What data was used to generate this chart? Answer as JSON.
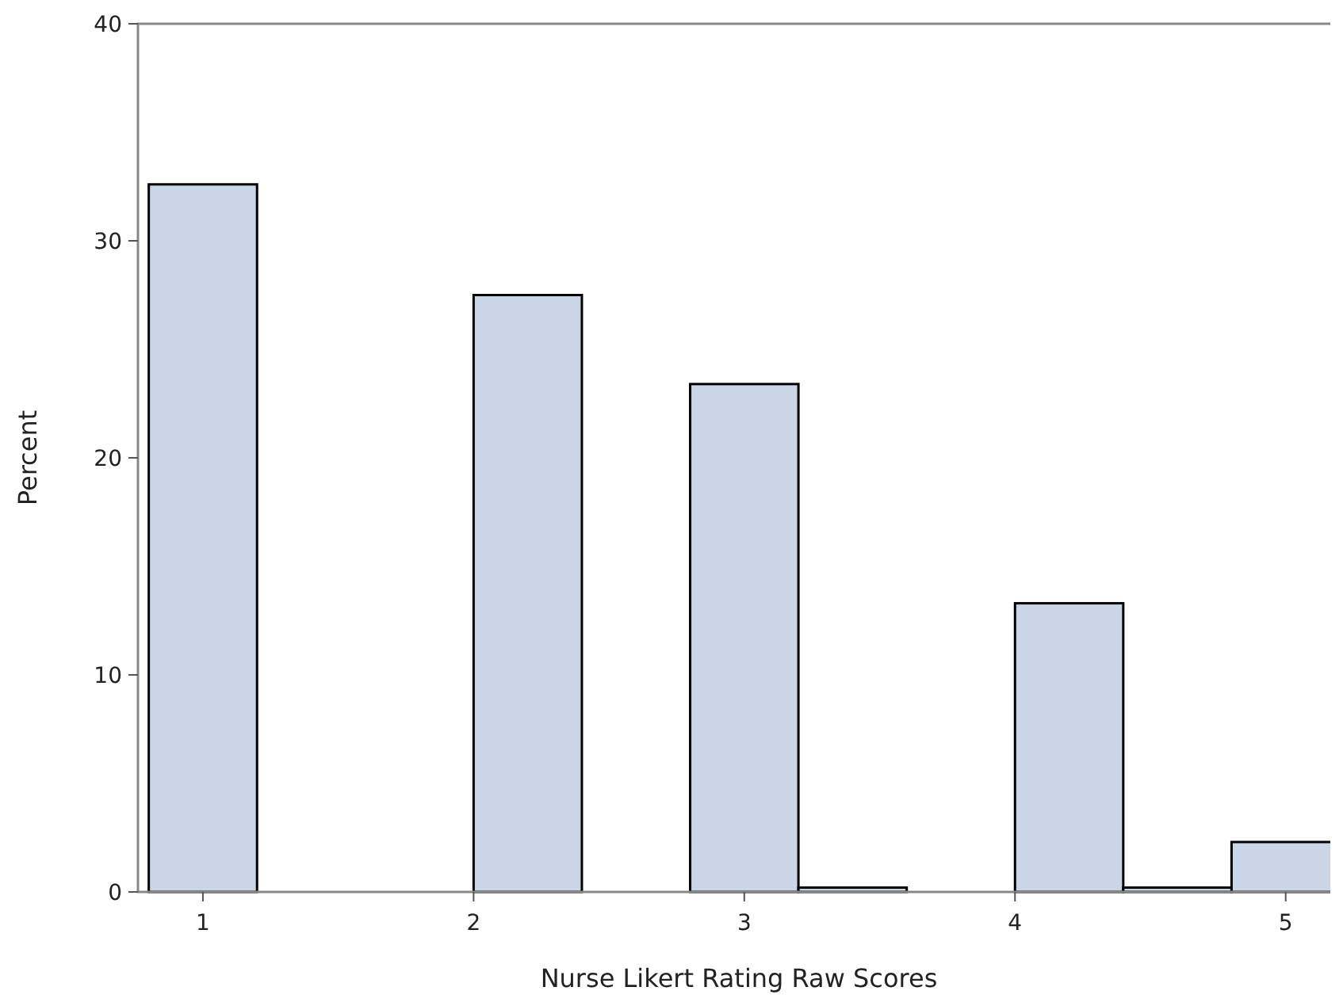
{
  "chart_data": {
    "type": "histogram",
    "xlabel": "Nurse Likert Rating Raw Scores",
    "ylabel": "Percent",
    "bins": [
      0.8,
      1.2,
      1.6,
      2.0,
      2.4,
      2.8,
      3.2,
      3.6,
      4.0,
      4.4,
      4.8,
      5.2
    ],
    "values": [
      32.6,
      0,
      0,
      27.5,
      0,
      23.4,
      0.2,
      0,
      13.3,
      0.2,
      2.3
    ],
    "color": "#cad5e5",
    "xlim": [
      0.76,
      5.2
    ],
    "xticks": [
      1,
      2,
      3,
      4,
      5
    ],
    "ylim": [
      0,
      40
    ],
    "yticks": [
      0,
      10,
      20,
      30,
      40
    ],
    "grid": false
  }
}
